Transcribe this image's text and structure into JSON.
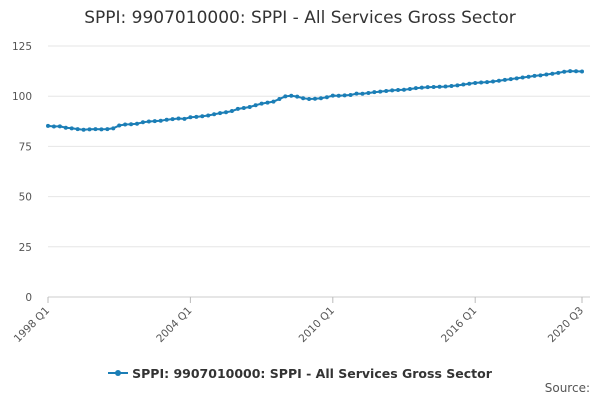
{
  "chart_data": {
    "type": "line",
    "title": "SPPI: 9907010000: SPPI - All Services Gross Sector",
    "xlabel": "",
    "ylabel": "",
    "ylim": [
      0,
      125
    ],
    "y_ticks": [
      0,
      25,
      50,
      75,
      100,
      125
    ],
    "x_tick_labels": [
      {
        "label": "1998 Q1",
        "index": 0
      },
      {
        "label": "2004 Q1",
        "index": 24
      },
      {
        "label": "2010 Q1",
        "index": 48
      },
      {
        "label": "2016 Q1",
        "index": 72
      },
      {
        "label": "2020 Q3",
        "index": 90
      }
    ],
    "grid": true,
    "legend_position": "bottom",
    "series": [
      {
        "name": "SPPI: 9907010000: SPPI - All Services Gross Sector",
        "color": "#1b7eb6",
        "start": "1998 Q1",
        "values": [
          85.2,
          84.9,
          85.0,
          84.3,
          84.0,
          83.6,
          83.3,
          83.5,
          83.6,
          83.5,
          83.6,
          84.0,
          85.4,
          85.9,
          86.0,
          86.3,
          87.0,
          87.4,
          87.6,
          87.8,
          88.3,
          88.6,
          88.9,
          88.7,
          89.5,
          89.7,
          90.0,
          90.4,
          91.0,
          91.6,
          92.0,
          92.6,
          93.7,
          94.1,
          94.6,
          95.5,
          96.3,
          96.8,
          97.3,
          98.6,
          99.9,
          100.2,
          99.8,
          99.0,
          98.6,
          98.7,
          99.0,
          99.5,
          100.3,
          100.2,
          100.4,
          100.6,
          101.3,
          101.2,
          101.6,
          102.0,
          102.3,
          102.6,
          102.9,
          103.1,
          103.2,
          103.6,
          104.0,
          104.3,
          104.5,
          104.6,
          104.7,
          104.8,
          105.1,
          105.4,
          105.8,
          106.2,
          106.6,
          106.8,
          107.0,
          107.3,
          107.7,
          108.1,
          108.5,
          108.9,
          109.3,
          109.7,
          110.1,
          110.4,
          110.8,
          111.2,
          111.6,
          112.2,
          112.5,
          112.4,
          112.3
        ]
      }
    ]
  },
  "legend": {
    "label": "SPPI: 9907010000: SPPI - All Services Gross Sector"
  },
  "footer": {
    "source_label": "Source:"
  }
}
